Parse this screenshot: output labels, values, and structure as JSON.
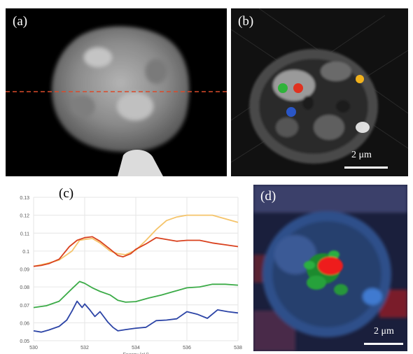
{
  "figure": {
    "panels": {
      "a": {
        "label": "(a)"
      },
      "b": {
        "label": "(b)",
        "scale_text": "2 μm",
        "markers": [
          {
            "name": "green",
            "color": "#2fb33a"
          },
          {
            "name": "red",
            "color": "#e0311f"
          },
          {
            "name": "blue",
            "color": "#2a56c6"
          },
          {
            "name": "orange",
            "color": "#f2b21c"
          }
        ]
      },
      "c": {
        "label": "(c)",
        "xlabel": "Energy (eV)"
      },
      "d": {
        "label": "(d)",
        "scale_text": "2 μm"
      }
    }
  },
  "chart_data": {
    "type": "line",
    "xlabel": "Energy (eV)",
    "ylabel": "",
    "xlim": [
      530,
      538
    ],
    "ylim": [
      0.05,
      0.13
    ],
    "x_ticks": [
      "530",
      "532",
      "534",
      "536",
      "538"
    ],
    "y_ticks": [
      "0.13",
      "0.12",
      "0.11",
      "0.1",
      "0.09",
      "0.08",
      "0.07",
      "0.06",
      "0.05"
    ],
    "grid": true,
    "series": [
      {
        "color": "#f5c46a",
        "x": [
          530,
          530.5,
          531,
          531.5,
          531.8,
          532,
          532.3,
          532.6,
          533,
          533.3,
          533.6,
          534,
          534.4,
          534.8,
          535.2,
          535.6,
          536,
          536.5,
          537,
          537.5,
          538
        ],
        "y": [
          0.0915,
          0.093,
          0.095,
          0.1,
          0.106,
          0.1065,
          0.107,
          0.1045,
          0.1,
          0.0985,
          0.098,
          0.1005,
          0.106,
          0.112,
          0.117,
          0.119,
          0.12,
          0.12,
          0.12,
          0.118,
          0.116
        ]
      },
      {
        "color": "#d9411e",
        "x": [
          530,
          530.3,
          530.6,
          531,
          531.4,
          531.7,
          532,
          532.3,
          532.6,
          533,
          533.3,
          533.5,
          533.8,
          534,
          534.4,
          534.8,
          535.2,
          535.6,
          536,
          536.5,
          537,
          537.5,
          538
        ],
        "y": [
          0.0915,
          0.092,
          0.093,
          0.0955,
          0.1025,
          0.106,
          0.1075,
          0.108,
          0.1055,
          0.101,
          0.0975,
          0.0968,
          0.0985,
          0.101,
          0.104,
          0.1075,
          0.1065,
          0.1055,
          0.106,
          0.106,
          0.1045,
          0.1035,
          0.1025
        ]
      },
      {
        "color": "#3bab47",
        "x": [
          530,
          530.5,
          531,
          531.5,
          531.8,
          532,
          532.3,
          532.6,
          533,
          533.3,
          533.6,
          534,
          534.5,
          535,
          535.5,
          536,
          536.5,
          537,
          537.5,
          538
        ],
        "y": [
          0.0685,
          0.0695,
          0.072,
          0.079,
          0.083,
          0.082,
          0.0795,
          0.0775,
          0.0755,
          0.0725,
          0.0715,
          0.0718,
          0.0738,
          0.0755,
          0.0775,
          0.0795,
          0.08,
          0.0815,
          0.0815,
          0.081
        ]
      },
      {
        "color": "#2c44a6",
        "x": [
          530,
          530.3,
          530.6,
          531,
          531.3,
          531.5,
          531.7,
          531.9,
          532,
          532.2,
          532.4,
          532.6,
          532.9,
          533.1,
          533.3,
          533.6,
          534,
          534.4,
          534.8,
          535.2,
          535.6,
          536,
          536.4,
          536.8,
          537.2,
          537.6,
          538
        ],
        "y": [
          0.0555,
          0.0548,
          0.056,
          0.058,
          0.0615,
          0.0665,
          0.072,
          0.0685,
          0.0705,
          0.0672,
          0.0635,
          0.0662,
          0.0605,
          0.0575,
          0.0555,
          0.0562,
          0.057,
          0.0575,
          0.0612,
          0.0615,
          0.0622,
          0.0662,
          0.0648,
          0.0625,
          0.0672,
          0.0662,
          0.0655
        ]
      }
    ]
  }
}
